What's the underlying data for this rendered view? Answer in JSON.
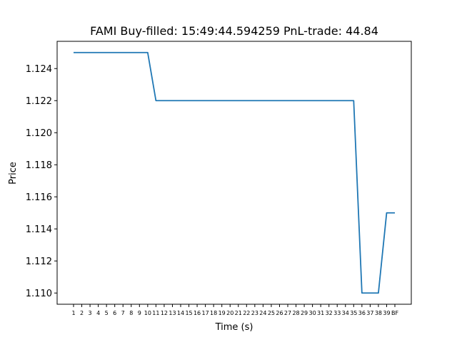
{
  "chart_data": {
    "type": "line",
    "title": "FAMI  Buy-filled:  15:49:44.594259  PnL-trade:  44.84",
    "xlabel": "Time (s)",
    "ylabel": "Price",
    "x_tick_labels": [
      "1",
      "2",
      "3",
      "4",
      "5",
      "6",
      "7",
      "8",
      "9",
      "10",
      "11",
      "12",
      "13",
      "14",
      "15",
      "16",
      "17",
      "18",
      "19",
      "20",
      "21",
      "22",
      "23",
      "24",
      "25",
      "26",
      "27",
      "28",
      "29",
      "30",
      "31",
      "32",
      "33",
      "34",
      "35",
      "36",
      "37",
      "38",
      "39",
      "BF"
    ],
    "y_ticks": [
      "1.110",
      "1.112",
      "1.114",
      "1.116",
      "1.118",
      "1.120",
      "1.122",
      "1.124"
    ],
    "ylim": [
      1.1093,
      1.1257
    ],
    "series": [
      {
        "color": "#1f77b4",
        "values": [
          1.125,
          1.125,
          1.125,
          1.125,
          1.125,
          1.125,
          1.125,
          1.125,
          1.125,
          1.125,
          1.122,
          1.122,
          1.122,
          1.122,
          1.122,
          1.122,
          1.122,
          1.122,
          1.122,
          1.122,
          1.122,
          1.122,
          1.122,
          1.122,
          1.122,
          1.122,
          1.122,
          1.122,
          1.122,
          1.122,
          1.122,
          1.122,
          1.122,
          1.122,
          1.122,
          1.11,
          1.11,
          1.11,
          1.115,
          1.115
        ]
      }
    ],
    "grid": false,
    "legend": "none"
  }
}
